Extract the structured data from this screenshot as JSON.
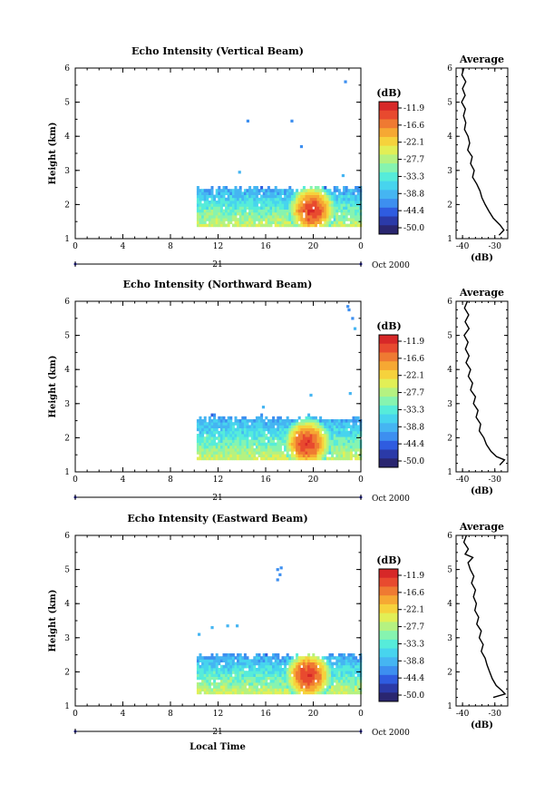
{
  "chart_data": [
    {
      "type": "heatmap",
      "title": "Echo Intensity (Vertical Beam)",
      "ylabel": "Height (km)",
      "xlim": [
        0,
        24
      ],
      "ylim": [
        1,
        6
      ],
      "x_ticks": [
        "0",
        "4",
        "8",
        "12",
        "16",
        "20",
        "0"
      ],
      "y_ticks": [
        "1",
        "2",
        "3",
        "4",
        "5",
        "6"
      ],
      "date_axis": {
        "label": "21",
        "suffix": "Oct 2000"
      },
      "echo": {
        "start_hour": 10.2,
        "end_hour": 24,
        "base_km": 1.35,
        "top_km": 2.45,
        "peak_hour": 19.8,
        "peak_km": 1.8,
        "peak_db": -11.9
      },
      "isolated_echoes": [
        [
          14.5,
          4.45,
          -44.4
        ],
        [
          18.2,
          4.45,
          -44.4
        ],
        [
          19.0,
          3.7,
          -44.4
        ],
        [
          22.7,
          5.6,
          -44.4
        ],
        [
          13.8,
          2.95,
          -38.8
        ],
        [
          22.5,
          2.85,
          -38.8
        ]
      ],
      "colorbar": {
        "label": "(dB)",
        "ticks": [
          "-11.9",
          "-16.6",
          "-22.1",
          "-27.7",
          "-33.3",
          "-38.8",
          "-44.4",
          "-50.0"
        ]
      },
      "profile": {
        "title": "Average",
        "xlabel": "(dB)",
        "xlim": [
          -42,
          -26
        ],
        "x_ticks": [
          "-40",
          "-30"
        ],
        "y_ticks": [
          "1",
          "2",
          "3",
          "4",
          "5",
          "6"
        ],
        "points": [
          [
            -39.6,
            6.0
          ],
          [
            -40.2,
            5.8
          ],
          [
            -39.0,
            5.6
          ],
          [
            -40.0,
            5.4
          ],
          [
            -39.2,
            5.2
          ],
          [
            -40.3,
            5.0
          ],
          [
            -39.1,
            4.8
          ],
          [
            -39.7,
            4.6
          ],
          [
            -39.0,
            4.4
          ],
          [
            -39.4,
            4.2
          ],
          [
            -38.3,
            4.0
          ],
          [
            -37.8,
            3.8
          ],
          [
            -38.4,
            3.6
          ],
          [
            -37.0,
            3.4
          ],
          [
            -37.5,
            3.2
          ],
          [
            -36.4,
            3.0
          ],
          [
            -36.9,
            2.8
          ],
          [
            -35.6,
            2.6
          ],
          [
            -34.6,
            2.4
          ],
          [
            -34.0,
            2.2
          ],
          [
            -33.0,
            2.0
          ],
          [
            -31.8,
            1.8
          ],
          [
            -30.5,
            1.6
          ],
          [
            -28.4,
            1.4
          ],
          [
            -27.2,
            1.25
          ],
          [
            -28.7,
            1.1
          ]
        ]
      }
    },
    {
      "type": "heatmap",
      "title": "Echo Intensity (Northward Beam)",
      "ylabel": "Height (km)",
      "xlim": [
        0,
        24
      ],
      "ylim": [
        1,
        6
      ],
      "x_ticks": [
        "0",
        "4",
        "8",
        "12",
        "16",
        "20",
        "0"
      ],
      "y_ticks": [
        "1",
        "2",
        "3",
        "4",
        "5",
        "6"
      ],
      "date_axis": {
        "label": "21",
        "suffix": "Oct 2000"
      },
      "echo": {
        "start_hour": 10.2,
        "end_hour": 24,
        "base_km": 1.35,
        "top_km": 2.55,
        "peak_hour": 19.4,
        "peak_km": 1.8,
        "peak_db": -11.9
      },
      "isolated_echoes": [
        [
          23.0,
          5.75,
          -44.4
        ],
        [
          23.3,
          5.5,
          -44.4
        ],
        [
          22.9,
          5.85,
          -44.4
        ],
        [
          23.5,
          5.2,
          -38.8
        ],
        [
          19.8,
          3.25,
          -38.8
        ],
        [
          23.1,
          3.3,
          -38.8
        ],
        [
          15.8,
          2.9,
          -38.8
        ]
      ],
      "colorbar": {
        "label": "(dB)",
        "ticks": [
          "-11.9",
          "-16.6",
          "-22.1",
          "-27.7",
          "-33.3",
          "-38.8",
          "-44.4",
          "-50.0"
        ]
      },
      "profile": {
        "title": "Average",
        "xlabel": "(dB)",
        "xlim": [
          -42,
          -26
        ],
        "x_ticks": [
          "-40",
          "-30"
        ],
        "y_ticks": [
          "1",
          "2",
          "3",
          "4",
          "5",
          "6"
        ],
        "points": [
          [
            -38.5,
            6.0
          ],
          [
            -39.4,
            5.8
          ],
          [
            -38.1,
            5.6
          ],
          [
            -39.2,
            5.4
          ],
          [
            -38.0,
            5.2
          ],
          [
            -39.5,
            5.0
          ],
          [
            -38.3,
            4.8
          ],
          [
            -39.1,
            4.6
          ],
          [
            -38.0,
            4.4
          ],
          [
            -38.9,
            4.2
          ],
          [
            -37.5,
            4.0
          ],
          [
            -38.2,
            3.8
          ],
          [
            -36.9,
            3.6
          ],
          [
            -37.5,
            3.4
          ],
          [
            -36.0,
            3.2
          ],
          [
            -36.6,
            3.0
          ],
          [
            -35.2,
            2.8
          ],
          [
            -35.8,
            2.6
          ],
          [
            -34.4,
            2.4
          ],
          [
            -34.8,
            2.2
          ],
          [
            -33.4,
            2.0
          ],
          [
            -32.6,
            1.8
          ],
          [
            -31.2,
            1.6
          ],
          [
            -29.5,
            1.45
          ],
          [
            -27.0,
            1.35
          ],
          [
            -28.5,
            1.2
          ]
        ]
      }
    },
    {
      "type": "heatmap",
      "title": "Echo Intensity (Eastward Beam)",
      "xlabel": "Local Time",
      "ylabel": "Height (km)",
      "xlim": [
        0,
        24
      ],
      "ylim": [
        1,
        6
      ],
      "x_ticks": [
        "0",
        "4",
        "8",
        "12",
        "16",
        "20",
        "0"
      ],
      "y_ticks": [
        "1",
        "2",
        "3",
        "4",
        "5",
        "6"
      ],
      "date_axis": {
        "label": "21",
        "suffix": "Oct 2000"
      },
      "echo": {
        "start_hour": 10.2,
        "end_hour": 24,
        "base_km": 1.35,
        "top_km": 2.45,
        "peak_hour": 19.5,
        "peak_km": 1.85,
        "peak_db": -11.9
      },
      "isolated_echoes": [
        [
          17.0,
          5.0,
          -44.4
        ],
        [
          17.2,
          4.85,
          -44.4
        ],
        [
          17.0,
          4.7,
          -44.4
        ],
        [
          17.3,
          5.05,
          -44.4
        ],
        [
          11.5,
          3.3,
          -38.8
        ],
        [
          12.8,
          3.35,
          -38.8
        ],
        [
          13.6,
          3.35,
          -38.8
        ],
        [
          10.4,
          3.1,
          -38.8
        ]
      ],
      "colorbar": {
        "label": "(dB)",
        "ticks": [
          "-11.9",
          "-16.6",
          "-22.1",
          "-27.7",
          "-33.3",
          "-38.8",
          "-44.4",
          "-50.0"
        ]
      },
      "profile": {
        "title": "Average",
        "xlabel": "(dB)",
        "xlim": [
          -42,
          -26
        ],
        "x_ticks": [
          "-40",
          "-30"
        ],
        "y_ticks": [
          "1",
          "2",
          "3",
          "4",
          "5",
          "6"
        ],
        "points": [
          [
            -38.8,
            6.0
          ],
          [
            -39.6,
            5.8
          ],
          [
            -38.2,
            5.6
          ],
          [
            -39.2,
            5.45
          ],
          [
            -36.8,
            5.35
          ],
          [
            -38.3,
            5.2
          ],
          [
            -37.6,
            5.0
          ],
          [
            -36.5,
            4.8
          ],
          [
            -37.2,
            4.6
          ],
          [
            -36.0,
            4.4
          ],
          [
            -36.6,
            4.2
          ],
          [
            -35.7,
            4.0
          ],
          [
            -36.2,
            3.8
          ],
          [
            -35.0,
            3.6
          ],
          [
            -35.6,
            3.4
          ],
          [
            -34.2,
            3.2
          ],
          [
            -34.8,
            3.0
          ],
          [
            -33.6,
            2.8
          ],
          [
            -34.2,
            2.6
          ],
          [
            -33.0,
            2.4
          ],
          [
            -32.4,
            2.2
          ],
          [
            -31.6,
            2.0
          ],
          [
            -30.8,
            1.8
          ],
          [
            -29.6,
            1.6
          ],
          [
            -27.8,
            1.45
          ],
          [
            -26.8,
            1.35
          ],
          [
            -30.5,
            1.25
          ]
        ]
      }
    }
  ],
  "colors": {
    "scale": [
      "#2a2670",
      "#2b3aa8",
      "#2f5ce0",
      "#3d8ff0",
      "#45b5f2",
      "#47d4ee",
      "#56ecda",
      "#86f4b0",
      "#b5f281",
      "#e2ef56",
      "#f6d23c",
      "#f6a833",
      "#ef7a32",
      "#e84a2f",
      "#d72828"
    ],
    "axis": "#000000",
    "date_marker": "#2222aa"
  }
}
